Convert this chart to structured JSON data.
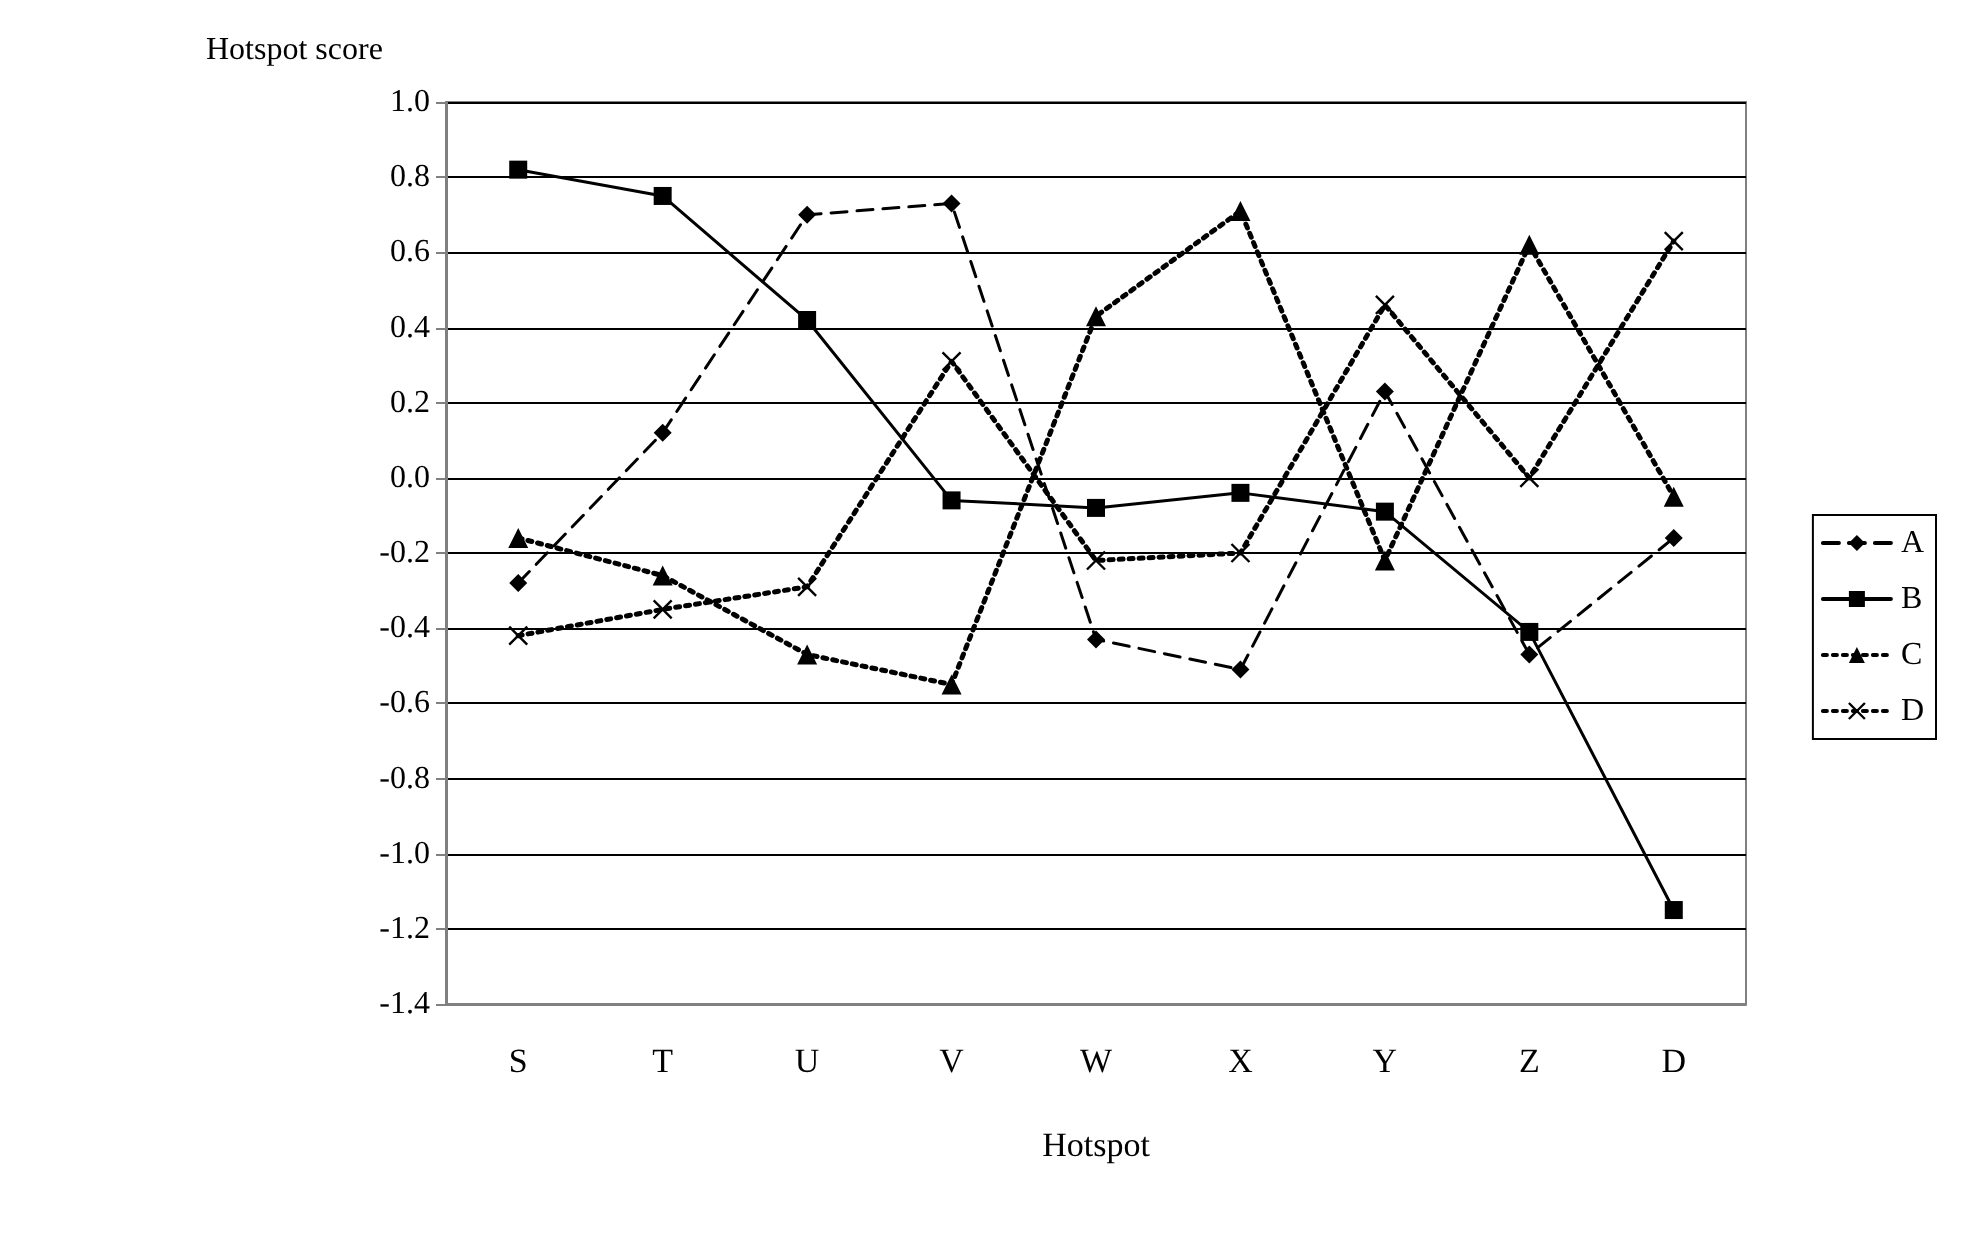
{
  "chart_data": {
    "type": "line",
    "xlabel": "Hotspot",
    "ylabel": "Hotspot score",
    "categories": [
      "S",
      "T",
      "U",
      "V",
      "W",
      "X",
      "Y",
      "Z",
      "D"
    ],
    "series": [
      {
        "name": "A",
        "color": "#000000",
        "marker": "diamond",
        "line_style": "dashed",
        "values": [
          -0.28,
          0.12,
          0.7,
          0.73,
          -0.43,
          -0.51,
          0.23,
          -0.47,
          -0.16
        ]
      },
      {
        "name": "B",
        "color": "#000000",
        "marker": "square",
        "line_style": "solid",
        "values": [
          0.82,
          0.75,
          0.42,
          -0.06,
          -0.08,
          -0.04,
          -0.09,
          -0.41,
          -1.15
        ]
      },
      {
        "name": "C",
        "color": "#000000",
        "marker": "triangle",
        "line_style": "dotted",
        "values": [
          -0.16,
          -0.26,
          -0.47,
          -0.55,
          0.43,
          0.71,
          -0.22,
          0.62,
          -0.05
        ]
      },
      {
        "name": "D",
        "color": "#000000",
        "marker": "cross",
        "line_style": "dotted",
        "values": [
          -0.42,
          -0.35,
          -0.29,
          0.31,
          -0.22,
          -0.2,
          0.46,
          0.0,
          0.63
        ]
      }
    ],
    "ylim": [
      -1.4,
      1.0
    ],
    "yticks": [
      {
        "value": -1.4,
        "label": "-1.4"
      },
      {
        "value": -1.2,
        "label": "-1.2"
      },
      {
        "value": -1.0,
        "label": "-1.0"
      },
      {
        "value": -0.8,
        "label": "-0.8"
      },
      {
        "value": -0.6,
        "label": "-0.6"
      },
      {
        "value": -0.4,
        "label": "-0.4"
      },
      {
        "value": -0.2,
        "label": "-0.2"
      },
      {
        "value": 0.0,
        "label": "0.0"
      },
      {
        "value": 0.2,
        "label": "0.2"
      },
      {
        "value": 0.4,
        "label": "0.4"
      },
      {
        "value": 0.6,
        "label": "0.6"
      },
      {
        "value": 0.8,
        "label": "0.8"
      },
      {
        "value": 1.0,
        "label": "1.0"
      }
    ],
    "grid": "y",
    "legend": "right"
  }
}
